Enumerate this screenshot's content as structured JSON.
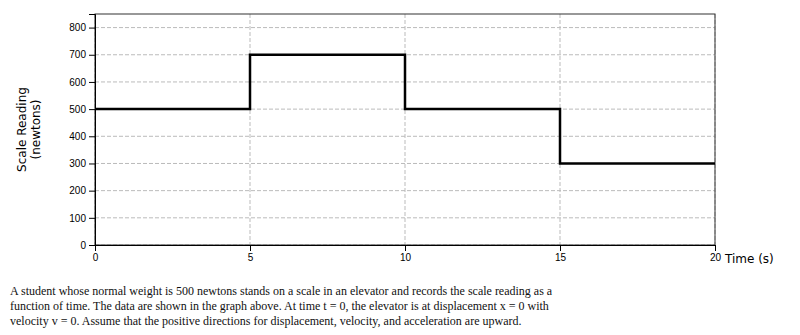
{
  "chart_data": {
    "type": "line",
    "xlabel": "Time (s)",
    "ylabel": "Scale Reading\n(newtons)",
    "x": [
      0,
      5,
      5,
      10,
      10,
      15,
      15,
      20
    ],
    "values": [
      500,
      500,
      700,
      700,
      500,
      500,
      300,
      300
    ],
    "color": "#000000",
    "xlim": [
      0,
      20
    ],
    "ylim": [
      0,
      850
    ],
    "xticks": [
      0,
      5,
      10,
      15,
      20
    ],
    "yticks": [
      0,
      100,
      200,
      300,
      400,
      500,
      600,
      700,
      800
    ],
    "grid": true,
    "annotation": "A student whose normal weight is 500 newtons stands on a scale in an elevator and records the scale reading as a\nfunction of time.  The data are shown in the graph above. At time t = 0, the elevator is at displacement x = 0 with\nvelocity v = 0. Assume that the positive directions for displacement, velocity, and acceleration are upward."
  }
}
